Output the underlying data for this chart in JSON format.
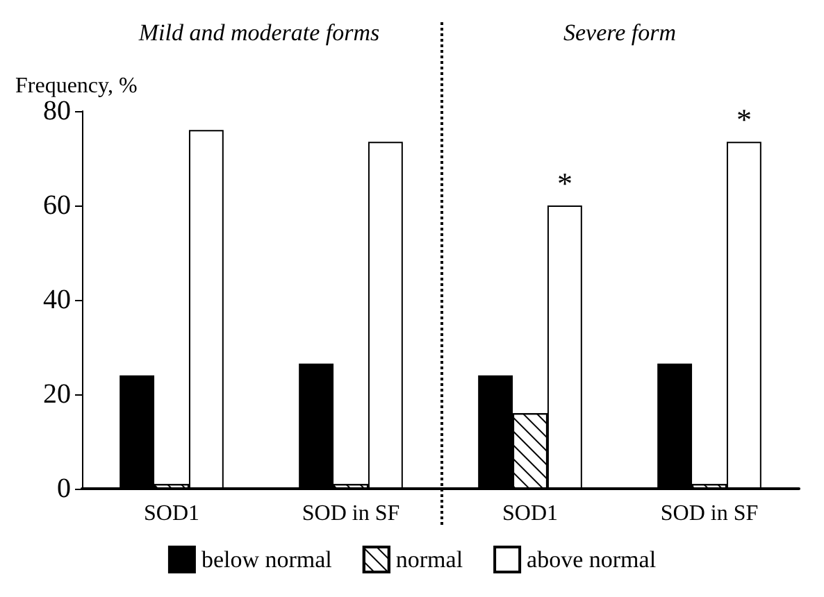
{
  "chart_data": {
    "type": "bar",
    "ylabel": "Frequency, %",
    "categories": [
      "SOD1",
      "SOD in SF",
      "SOD1",
      "SOD in SF"
    ],
    "series": [
      {
        "name": "below normal",
        "color": "#000000",
        "values": [
          24,
          26.5,
          24,
          26.5
        ]
      },
      {
        "name": "normal",
        "color": "#ffffff",
        "values": [
          1,
          1,
          16,
          1
        ]
      },
      {
        "name": "above normal",
        "color": "#ffffff",
        "values": [
          76,
          73.5,
          60,
          73.5
        ],
        "value_labels": [
          null,
          null,
          "*",
          "*"
        ]
      }
    ],
    "annotations": [
      "Mild and moderate forms",
      "Severe form"
    ],
    "ylim": [
      0,
      80
    ],
    "yticks": [
      0,
      20,
      40,
      60,
      80
    ],
    "grid": false,
    "legend": "bottom"
  }
}
